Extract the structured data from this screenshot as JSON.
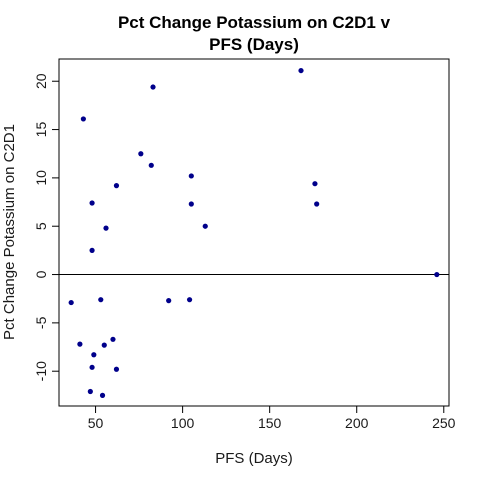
{
  "chart_data": {
    "type": "scatter",
    "title_lines": [
      "Pct Change Potassium on C2D1 v",
      "PFS (Days)"
    ],
    "xlabel": "PFS (Days)",
    "ylabel": "Pct Change Potassium on C2D1",
    "xlim": [
      29,
      253
    ],
    "ylim": [
      -13.6,
      22.3
    ],
    "x_ticks": [
      {
        "value": 50,
        "label": "50"
      },
      {
        "value": 100,
        "label": "100"
      },
      {
        "value": 150,
        "label": "150"
      },
      {
        "value": 200,
        "label": "200"
      },
      {
        "value": 250,
        "label": "250"
      }
    ],
    "y_ticks": [
      {
        "value": -10,
        "label": "-10"
      },
      {
        "value": -5,
        "label": "-5"
      },
      {
        "value": 0,
        "label": "0"
      },
      {
        "value": 5,
        "label": "5"
      },
      {
        "value": 10,
        "label": "10"
      },
      {
        "value": 15,
        "label": "15"
      },
      {
        "value": 20,
        "label": "20"
      }
    ],
    "reference_line_y": 0,
    "point_color": "#00008b",
    "points": [
      {
        "x": 36,
        "y": -2.9
      },
      {
        "x": 41,
        "y": -7.2
      },
      {
        "x": 43,
        "y": 16.1
      },
      {
        "x": 47,
        "y": -12.1
      },
      {
        "x": 48,
        "y": -9.6
      },
      {
        "x": 48,
        "y": 7.4
      },
      {
        "x": 48,
        "y": 2.5
      },
      {
        "x": 49,
        "y": -8.3
      },
      {
        "x": 53,
        "y": -2.6
      },
      {
        "x": 54,
        "y": -12.5
      },
      {
        "x": 55,
        "y": -7.3
      },
      {
        "x": 56,
        "y": 4.8
      },
      {
        "x": 60,
        "y": -6.7
      },
      {
        "x": 62,
        "y": -9.8
      },
      {
        "x": 62,
        "y": 9.2
      },
      {
        "x": 76,
        "y": 12.5
      },
      {
        "x": 82,
        "y": 11.3
      },
      {
        "x": 83,
        "y": 19.4
      },
      {
        "x": 92,
        "y": -2.7
      },
      {
        "x": 104,
        "y": -2.6
      },
      {
        "x": 105,
        "y": 10.2
      },
      {
        "x": 105,
        "y": 7.3
      },
      {
        "x": 113,
        "y": 5.0
      },
      {
        "x": 168,
        "y": 21.1
      },
      {
        "x": 176,
        "y": 9.4
      },
      {
        "x": 177,
        "y": 7.3
      },
      {
        "x": 246,
        "y": 0.0
      }
    ],
    "grid": false,
    "legend": "none"
  }
}
